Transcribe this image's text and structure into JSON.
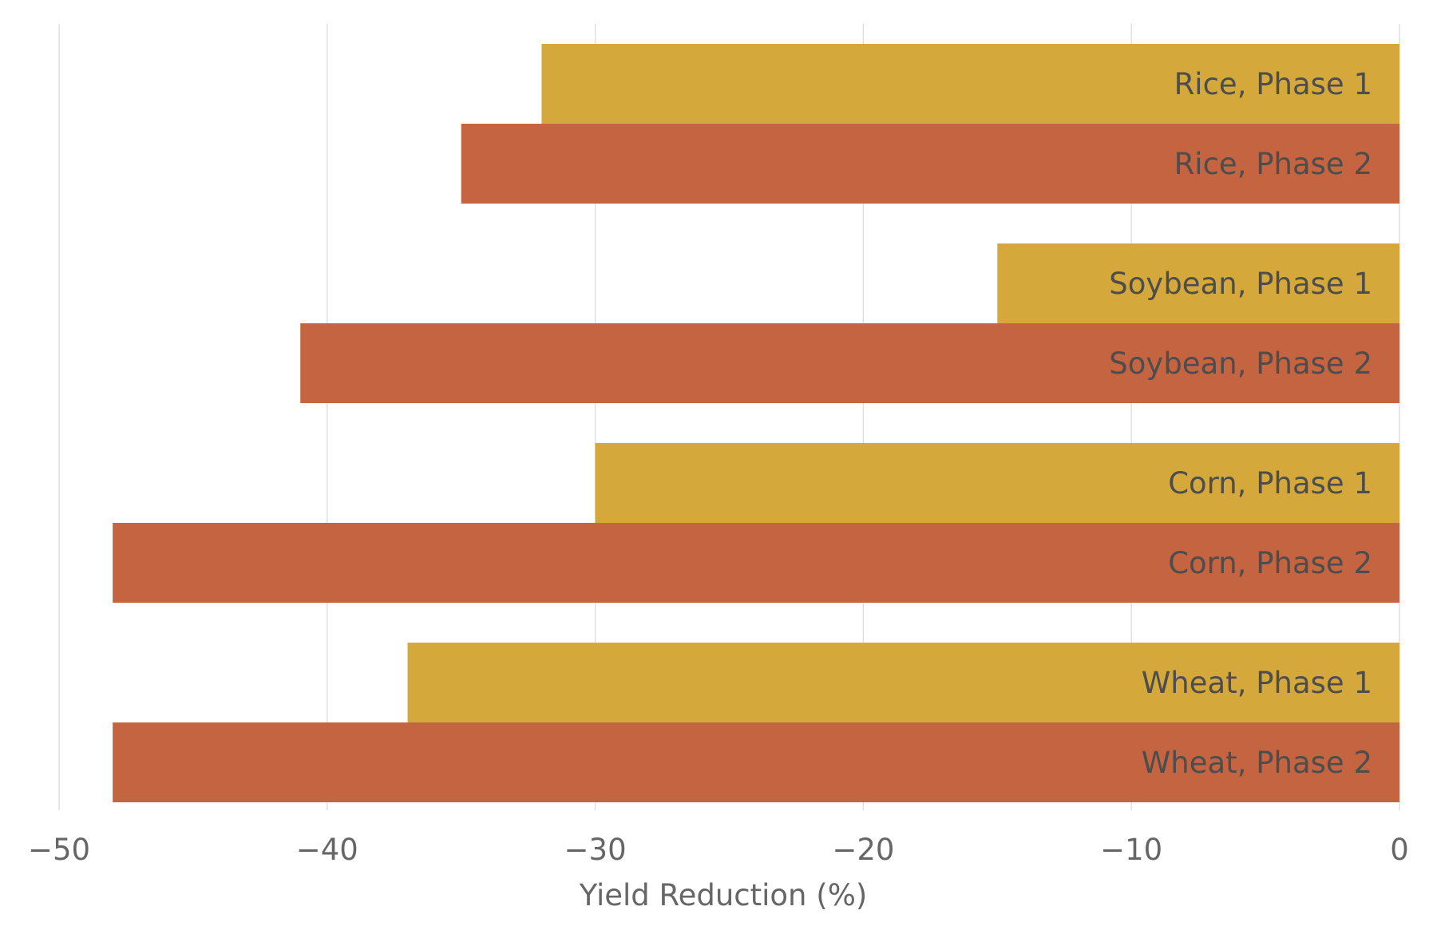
{
  "chart_data": {
    "type": "bar",
    "orientation": "horizontal",
    "xlabel": "Yield Reduction (%)",
    "xlim": [
      -50,
      0
    ],
    "xticks": [
      -50,
      -40,
      -30,
      -20,
      -10,
      0
    ],
    "xtick_labels": [
      "−50",
      "−40",
      "−30",
      "−20",
      "−10",
      "0"
    ],
    "grid": "vertical",
    "legend": "none",
    "categories": [
      "Rice",
      "Soybean",
      "Corn",
      "Wheat"
    ],
    "series": [
      {
        "name": "Phase 1",
        "color": "#d5a83b",
        "values": [
          -32,
          -15,
          -30,
          -37
        ]
      },
      {
        "name": "Phase 2",
        "color": "#c56441",
        "values": [
          -35,
          -41,
          -48,
          -48
        ]
      }
    ],
    "bar_labels": [
      [
        "Rice, Phase 1",
        "Rice, Phase 2"
      ],
      [
        "Soybean, Phase 1",
        "Soybean, Phase 2"
      ],
      [
        "Corn, Phase 1",
        "Corn, Phase 2"
      ],
      [
        "Wheat, Phase 1",
        "Wheat, Phase 2"
      ]
    ]
  }
}
